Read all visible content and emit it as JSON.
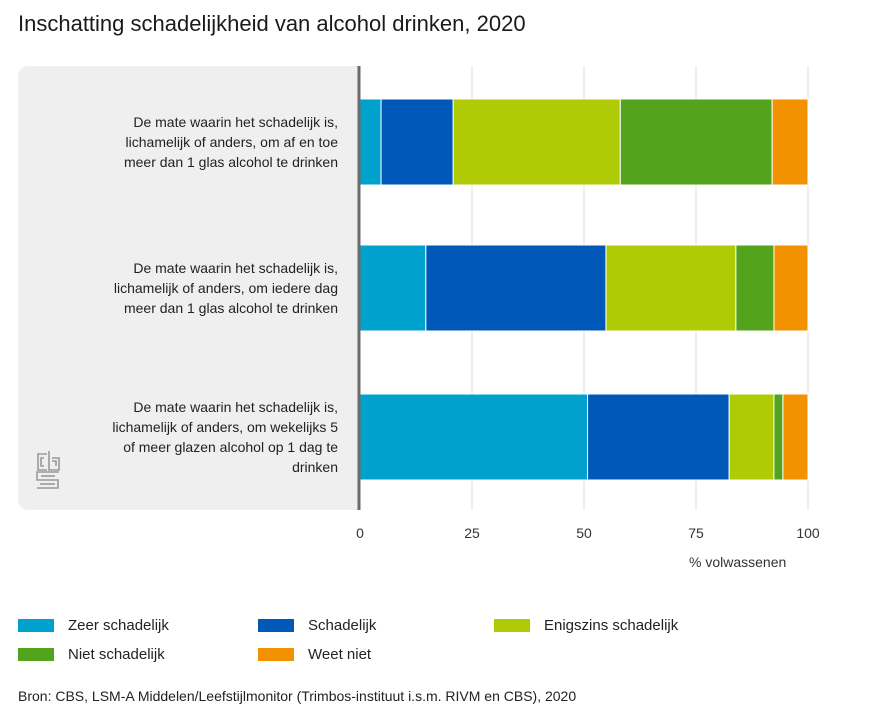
{
  "title": "Inschatting schadelijkheid van alcohol drinken, 2020",
  "source": "Bron: CBS, LSM-A Middelen/Leefstijlmonitor (Trimbos-instituut i.s.m. RIVM en CBS), 2020",
  "logo": "cbs-logo",
  "chart_data": {
    "type": "bar",
    "orientation": "horizontal",
    "stacked": true,
    "title": "Inschatting schadelijkheid van alcohol drinken, 2020",
    "xlabel": "% volwassenen",
    "ylabel": "",
    "xlim": [
      0,
      100
    ],
    "xticks": [
      0,
      25,
      50,
      75,
      100
    ],
    "grid": true,
    "legend_position": "bottom",
    "categories": [
      "De mate waarin het schadelijk is, lichamelijk of anders, om af en toe meer dan 1 glas alcohol te drinken",
      "De mate waarin het schadelijk is, lichamelijk of anders, om iedere dag meer dan 1 glas alcohol te drinken",
      "De mate waarin het schadelijk is, lichamelijk of anders, om wekelijks 5 of meer glazen alcohol op 1 dag te drinken"
    ],
    "series": [
      {
        "name": "Zeer schadelijk",
        "color": "#00a1cd",
        "values": [
          4.7,
          14.7,
          50.8
        ]
      },
      {
        "name": "Schadelijk",
        "color": "#0058b8",
        "values": [
          16.1,
          40.2,
          31.6
        ]
      },
      {
        "name": "Enigszins schadelijk",
        "color": "#afcb05",
        "values": [
          37.3,
          29.0,
          10.0
        ]
      },
      {
        "name": "Niet schadelijk",
        "color": "#53a31d",
        "values": [
          33.9,
          8.5,
          2.0
        ]
      },
      {
        "name": "Weet niet",
        "color": "#f39200",
        "values": [
          8.0,
          7.6,
          5.6
        ]
      }
    ]
  },
  "labels": {
    "cat0": [
      "De mate waarin het schadelijk is,",
      "lichamelijk of anders, om af en toe",
      "meer dan 1 glas alcohol te drinken"
    ],
    "cat1": [
      "De mate waarin het schadelijk is,",
      "lichamelijk of anders, om iedere dag",
      "meer dan 1 glas alcohol te drinken"
    ],
    "cat2": [
      "De mate waarin het schadelijk is,",
      "lichamelijk of anders, om wekelijks 5",
      "of meer glazen alcohol op 1 dag te",
      "drinken"
    ]
  }
}
